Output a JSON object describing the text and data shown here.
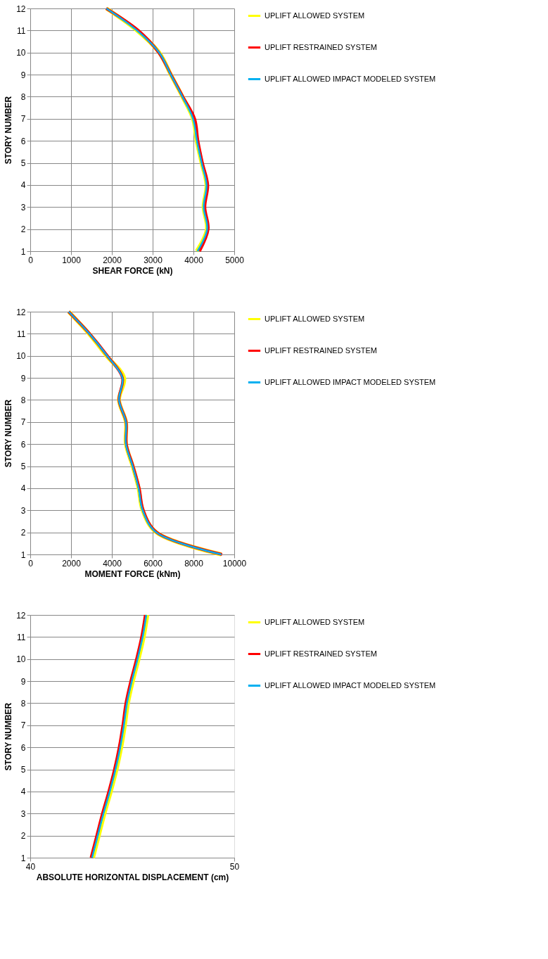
{
  "chart_data": [
    {
      "type": "line",
      "xlabel": "SHEAR FORCE (kN)",
      "ylabel": "STORY NUMBER",
      "xlim": [
        0,
        5000
      ],
      "xticks": [
        0,
        1000,
        2000,
        3000,
        4000,
        5000
      ],
      "ylim": [
        1,
        12
      ],
      "yticks": [
        1,
        2,
        3,
        4,
        5,
        6,
        7,
        8,
        9,
        10,
        11,
        12
      ],
      "grid": true,
      "legend": "right",
      "marker": "none",
      "line_style": "solid",
      "series": [
        {
          "name": "UPLIFT ALLOWED SYSTEM",
          "color": "#ffff00",
          "x": [
            4080,
            4330,
            4250,
            4320,
            4200,
            4080,
            3990,
            3730,
            3445,
            3160,
            2616,
            1867
          ],
          "values": [
            1,
            2,
            3,
            4,
            5,
            6,
            7,
            8,
            9,
            10,
            11,
            12
          ]
        },
        {
          "name": "UPLIFT RESTRAINED SYSTEM",
          "color": "#ff0000",
          "x": [
            4150,
            4360,
            4280,
            4350,
            4220,
            4110,
            4030,
            3740,
            3450,
            3150,
            2650,
            1860
          ],
          "values": [
            1,
            2,
            3,
            4,
            5,
            6,
            7,
            8,
            9,
            10,
            11,
            12
          ]
        },
        {
          "name": "UPLIFT ALLOWED IMPACT MODELED SYSTEM",
          "color": "#00b0f0",
          "x": [
            4100,
            4335,
            4250,
            4320,
            4200,
            4085,
            3990,
            3730,
            3445,
            3160,
            2616,
            1867
          ],
          "values": [
            1,
            2,
            3,
            4,
            5,
            6,
            7,
            8,
            9,
            10,
            11,
            12
          ]
        }
      ]
    },
    {
      "type": "line",
      "xlabel": "MOMENT FORCE (kNm)",
      "ylabel": "STORY NUMBER",
      "xlim": [
        0,
        10000
      ],
      "xticks": [
        0,
        2000,
        4000,
        6000,
        8000,
        10000
      ],
      "ylim": [
        1,
        12
      ],
      "yticks": [
        1,
        2,
        3,
        4,
        5,
        6,
        7,
        8,
        9,
        10,
        11,
        12
      ],
      "grid": true,
      "legend": "right",
      "marker": "none",
      "line_style": "solid",
      "series": [
        {
          "name": "UPLIFT ALLOWED SYSTEM",
          "color": "#ffff00",
          "x": [
            9370,
            6180,
            5510,
            5310,
            5020,
            4690,
            4690,
            4350,
            4600,
            3740,
            2880,
            1884
          ],
          "values": [
            1,
            2,
            3,
            4,
            5,
            6,
            7,
            8,
            9,
            10,
            11,
            12
          ]
        },
        {
          "name": "UPLIFT RESTRAINED SYSTEM",
          "color": "#ff0000",
          "x": [
            9400,
            6200,
            5540,
            5340,
            5040,
            4710,
            4700,
            4350,
            4520,
            3780,
            2910,
            1880
          ],
          "values": [
            1,
            2,
            3,
            4,
            5,
            6,
            7,
            8,
            9,
            10,
            11,
            12
          ]
        },
        {
          "name": "UPLIFT ALLOWED IMPACT MODELED SYSTEM",
          "color": "#00b0f0",
          "x": [
            9370,
            6180,
            5510,
            5310,
            5020,
            4690,
            4690,
            4350,
            4520,
            3770,
            2900,
            1884
          ],
          "values": [
            1,
            2,
            3,
            4,
            5,
            6,
            7,
            8,
            9,
            10,
            11,
            12
          ]
        }
      ]
    },
    {
      "type": "line",
      "xlabel": "ABSOLUTE HORIZONTAL DISPLACEMENT (cm)",
      "ylabel": "STORY NUMBER",
      "xlim": [
        40,
        50
      ],
      "xticks": [
        40,
        50
      ],
      "ylim": [
        1,
        12
      ],
      "yticks": [
        1,
        2,
        3,
        4,
        5,
        6,
        7,
        8,
        9,
        10,
        11,
        12
      ],
      "grid": "y",
      "legend": "right",
      "marker": "none",
      "line_style": "solid",
      "series": [
        {
          "name": "UPLIFT ALLOWED SYSTEM",
          "color": "#ffff00",
          "x": [
            43.08,
            43.36,
            43.64,
            43.95,
            44.23,
            44.46,
            44.64,
            44.79,
            45.03,
            45.31,
            45.56,
            45.74
          ],
          "values": [
            1,
            2,
            3,
            4,
            5,
            6,
            7,
            8,
            9,
            10,
            11,
            12
          ]
        },
        {
          "name": "UPLIFT RESTRAINED SYSTEM",
          "color": "#ff0000",
          "x": [
            42.98,
            43.26,
            43.54,
            43.85,
            44.13,
            44.36,
            44.54,
            44.69,
            44.93,
            45.21,
            45.46,
            45.64
          ],
          "values": [
            1,
            2,
            3,
            4,
            5,
            6,
            7,
            8,
            9,
            10,
            11,
            12
          ]
        },
        {
          "name": "UPLIFT ALLOWED IMPACT MODELED SYSTEM",
          "color": "#00b0f0",
          "x": [
            43.03,
            43.31,
            43.59,
            43.9,
            44.18,
            44.41,
            44.59,
            44.74,
            44.98,
            45.26,
            45.51,
            45.69
          ],
          "values": [
            1,
            2,
            3,
            4,
            5,
            6,
            7,
            8,
            9,
            10,
            11,
            12
          ]
        }
      ]
    }
  ]
}
